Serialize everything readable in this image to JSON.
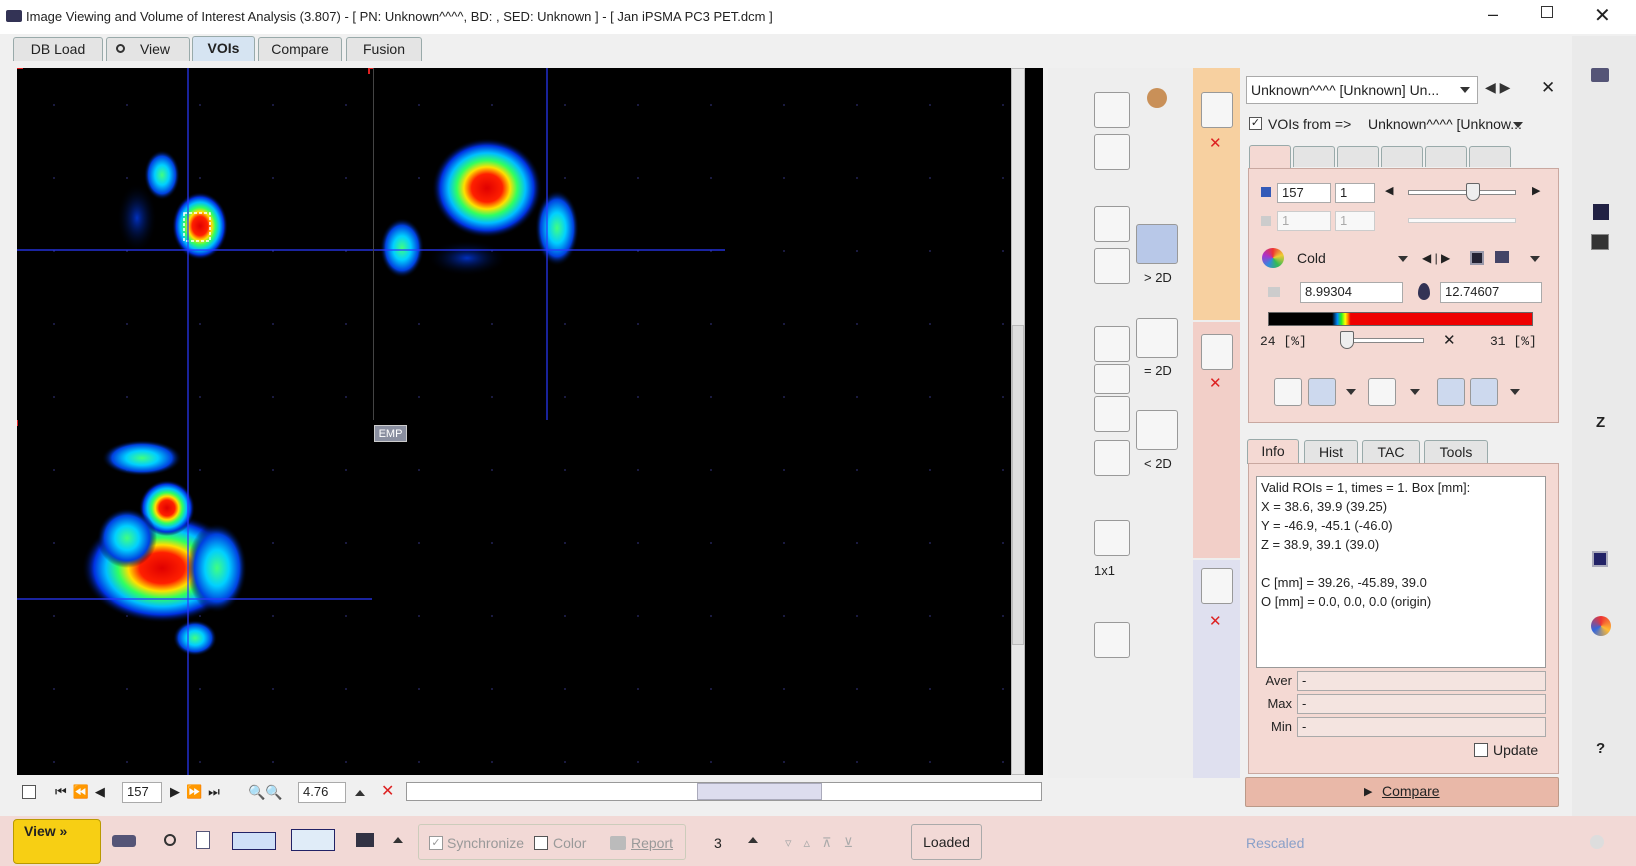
{
  "window": {
    "title": "Image Viewing and Volume of Interest Analysis (3.807) - [ PN: Unknown^^^^, BD: , SED: Unknown ] - [ Jan iPSMA PC3 PET.dcm ]"
  },
  "tabs": [
    "DB Load",
    "View",
    "VOIs",
    "Compare",
    "Fusion"
  ],
  "viewer": {
    "overlay_label": "EMP"
  },
  "viewer_toolbar": {
    "frame": "157",
    "zoom": "4.76"
  },
  "tool_column": {
    "labels": [
      "> 2D",
      "= 2D",
      "< 2D",
      "1x1"
    ]
  },
  "side_panel": {
    "study": "Unknown^^^^ [Unknown] Un...",
    "vois_from_label": "VOIs from =>",
    "vois_from_value": "Unknown^^^^ [Unknow...",
    "slice": "157",
    "frame": "1",
    "slice_disabled": "1",
    "frame_disabled": "1",
    "colormap": "Cold",
    "min": "8.99304",
    "max": "12.74607",
    "lower_pct": "24 [%]",
    "upper_pct": "31 [%]",
    "info_tabs": [
      "Info",
      "Hist",
      "TAC",
      "Tools"
    ],
    "info_lines": [
      "Valid ROIs = 1, times = 1.  Box [mm]:",
      "X = 38.6, 39.9 (39.25)",
      "Y = -46.9, -45.1 (-46.0)",
      "Z = 38.9, 39.1 (39.0)",
      "C [mm] = 39.26, -45.89, 39.0",
      "O [mm] = 0.0, 0.0, 0.0 (origin)"
    ],
    "stats": [
      {
        "label": "Aver",
        "value": "-"
      },
      {
        "label": "Max",
        "value": "-"
      },
      {
        "label": "Min",
        "value": "-"
      }
    ],
    "update": "Update",
    "compare": "Compare"
  },
  "bottom_bar": {
    "view": "View »",
    "synchronize": "Synchronize",
    "color": "Color",
    "report": "Report",
    "count": "3",
    "status": "Loaded",
    "rescaled": "Rescaled"
  },
  "right_icons": {
    "z": "Z",
    "help": "?"
  }
}
